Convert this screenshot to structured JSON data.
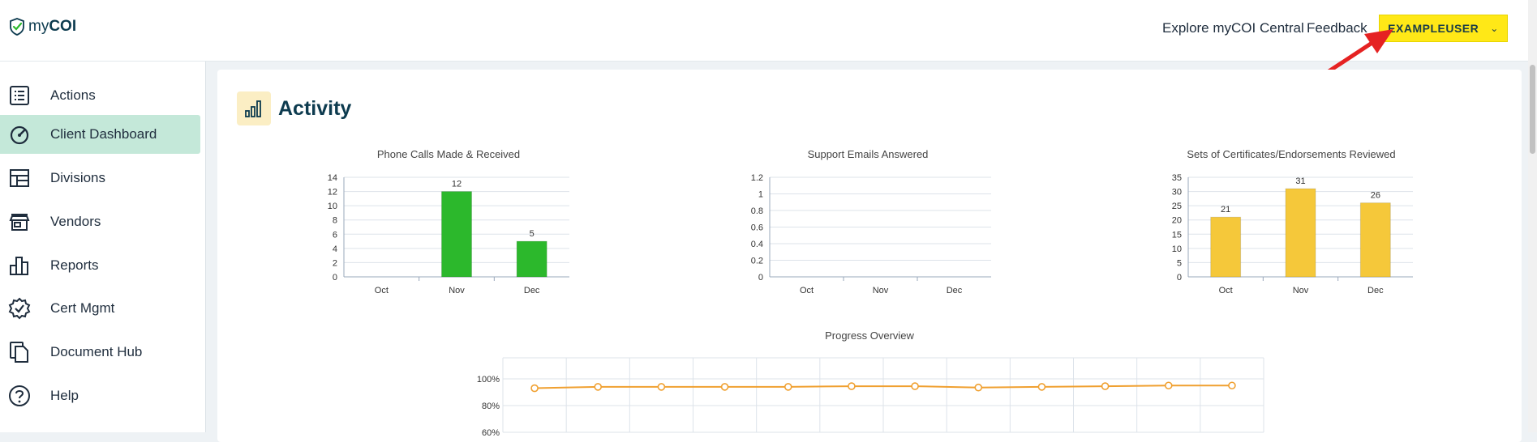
{
  "header": {
    "logo_text_prefix": "my",
    "logo_text_bold": "COI",
    "explore_link": "Explore myCOI Central",
    "feedback_link": "Feedback",
    "user_button": "EXAMPLEUSER",
    "user_button_color": "#ffe817"
  },
  "sidebar": {
    "items": [
      {
        "label": "Actions",
        "icon": "list-icon"
      },
      {
        "label": "Client Dashboard",
        "icon": "dashboard-gauge-icon",
        "active": true
      },
      {
        "label": "Divisions",
        "icon": "divisions-grid-icon"
      },
      {
        "label": "Vendors",
        "icon": "storefront-icon"
      },
      {
        "label": "Reports",
        "icon": "bar-chart-icon"
      },
      {
        "label": "Cert Mgmt",
        "icon": "badge-check-icon"
      },
      {
        "label": "Document Hub",
        "icon": "documents-icon"
      },
      {
        "label": "Help",
        "icon": "help-circle-icon"
      }
    ],
    "active_color": "#c4e8d9"
  },
  "main": {
    "section_title": "Activity"
  },
  "chart_data": [
    {
      "type": "bar",
      "title": "Phone Calls Made & Received",
      "categories": [
        "Oct",
        "Nov",
        "Dec"
      ],
      "values": [
        0,
        12,
        5
      ],
      "data_labels": [
        "",
        "12",
        "5"
      ],
      "ylim": [
        0,
        14
      ],
      "yticks": [
        "0",
        "2",
        "4",
        "6",
        "8",
        "10",
        "12",
        "14"
      ],
      "color": "#2cb82c"
    },
    {
      "type": "bar",
      "title": "Support Emails Answered",
      "categories": [
        "Oct",
        "Nov",
        "Dec"
      ],
      "values": [
        0,
        0,
        0
      ],
      "data_labels": [
        "",
        "",
        ""
      ],
      "ylim": [
        0,
        1.2
      ],
      "yticks": [
        "0",
        "0.2",
        "0.4",
        "0.6",
        "0.8",
        "1",
        "1.2"
      ],
      "color": "#2cb82c"
    },
    {
      "type": "bar",
      "title": "Sets of Certificates/Endorsements Reviewed",
      "categories": [
        "Oct",
        "Nov",
        "Dec"
      ],
      "values": [
        21,
        31,
        26
      ],
      "data_labels": [
        "21",
        "31",
        "26"
      ],
      "ylim": [
        0,
        35
      ],
      "yticks": [
        "0",
        "5",
        "10",
        "15",
        "20",
        "25",
        "30",
        "35"
      ],
      "color": "#f5c83a"
    },
    {
      "type": "line",
      "title": "Progress Overview",
      "yticks": [
        "100%",
        "80%",
        "60%"
      ],
      "values": [
        93,
        94,
        94,
        94,
        94,
        94.5,
        94.5,
        93.5,
        94,
        94.5,
        95,
        95
      ],
      "color": "#f0a030"
    }
  ]
}
